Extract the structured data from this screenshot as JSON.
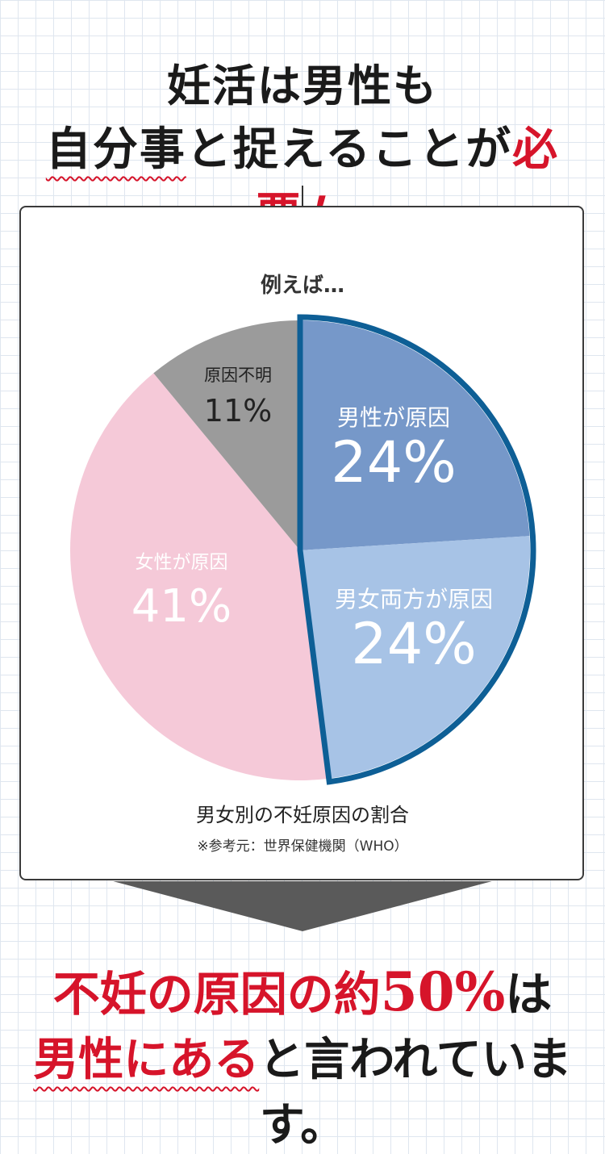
{
  "headline": {
    "line1": "妊活は男性も",
    "line2_part1": "自分事",
    "line2_part2": "と捉えることが",
    "line2_highlight": "必要",
    "line2_exclaim": "！"
  },
  "panel": {
    "intro_label": "例えば…"
  },
  "chart_data": {
    "type": "pie",
    "title": "男女別の不妊原因の割合",
    "source": "※参考元：世界保健機関（WHO）",
    "slices": [
      {
        "label": "男性が原因",
        "value": 24,
        "display": "24%",
        "color": "#7698c9",
        "text_color": "#ffffff"
      },
      {
        "label": "男女両方が原因",
        "value": 24,
        "display": "24%",
        "color": "#a7c3e6",
        "text_color": "#ffffff"
      },
      {
        "label": "女性が原因",
        "value": 41,
        "display": "41%",
        "color": "#f5c9d8",
        "text_color": "#ffffff"
      },
      {
        "label": "原因不明",
        "value": 11,
        "display": "11%",
        "color": "#9b9b9b",
        "text_color": "#222222"
      }
    ],
    "highlight_outline_color": "#0e5f96"
  },
  "conclusion": {
    "line1_part1": "不妊の原因の約",
    "line1_number": "50%",
    "line1_part2": "は",
    "line2_highlight": "男性にある",
    "line2_rest": "と言われています。"
  }
}
